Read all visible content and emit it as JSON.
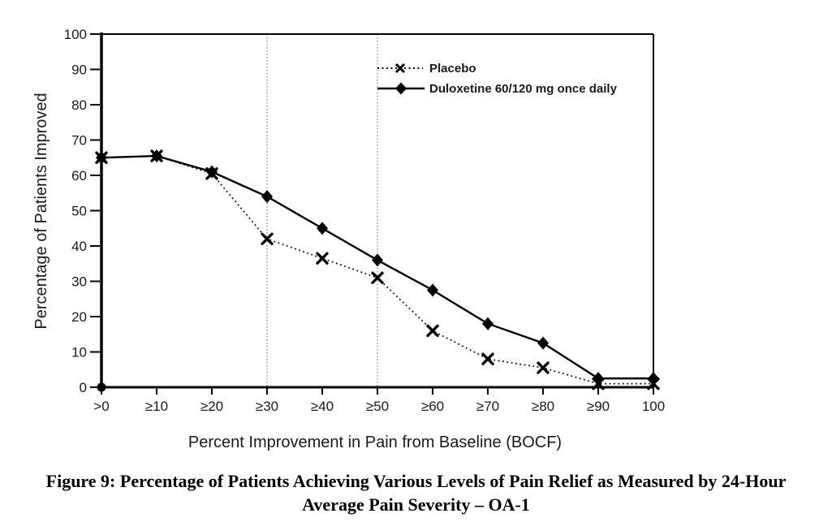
{
  "figure": {
    "caption_line1": "Figure 9: Percentage of Patients Achieving Various Levels of Pain Relief as Measured by 24-Hour",
    "caption_line2": "Average Pain Severity – OA-1"
  },
  "chart_data": {
    "type": "line",
    "title": "",
    "xlabel": "Percent Improvement in Pain from Baseline (BOCF)",
    "ylabel": "Percentage of Patients Improved",
    "categories": [
      ">0",
      "≥10",
      "≥20",
      "≥30",
      "≥40",
      "≥50",
      "≥60",
      "≥70",
      "≥80",
      "≥90",
      "100"
    ],
    "ylim": [
      0,
      100
    ],
    "yticks": [
      0,
      10,
      20,
      30,
      40,
      50,
      60,
      70,
      80,
      90,
      100
    ],
    "grid": "off",
    "reference_lines": {
      "at_categories": [
        "≥30",
        "≥50"
      ],
      "style": "dotted",
      "color": "#909090"
    },
    "legend_position": "inside-top-right",
    "series": [
      {
        "name": "Placebo",
        "marker": "x",
        "line_style": "dotted",
        "color": "#000000",
        "values": [
          65,
          65.5,
          60.5,
          42,
          36.5,
          31,
          16,
          8,
          5.5,
          1,
          1
        ]
      },
      {
        "name": "Duloxetine 60/120 mg once daily",
        "marker": "diamond",
        "line_style": "solid",
        "color": "#000000",
        "values": [
          65,
          65.5,
          61,
          54,
          45,
          36,
          27.5,
          18,
          12.5,
          2.5,
          2.5
        ]
      }
    ]
  }
}
